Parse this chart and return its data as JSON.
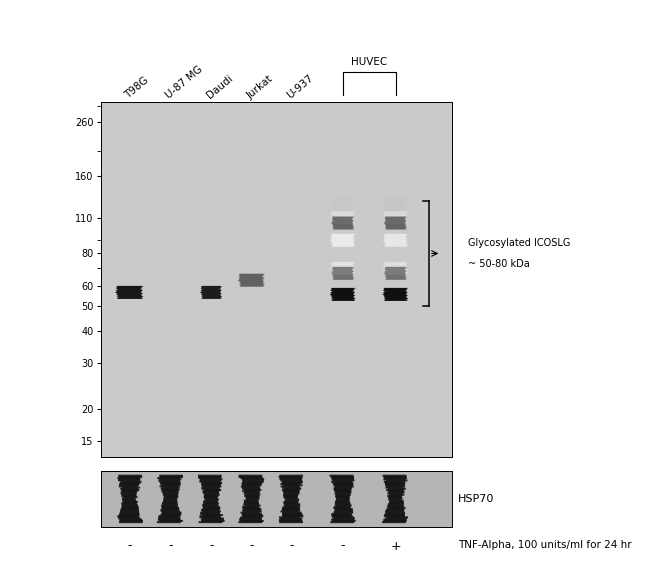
{
  "bg_color": "#c9c9c9",
  "panel_bg": "#cacaca",
  "lower_panel_bg": "#b5b5b5",
  "white_bg": "#ffffff",
  "lane_labels_main": [
    "T98G",
    "U-87 MG",
    "Daudi",
    "Jurkat",
    "U-937"
  ],
  "huvec_label": "HUVEC",
  "mw_markers": [
    260,
    160,
    110,
    80,
    60,
    50,
    40,
    30,
    20,
    15
  ],
  "annotation_line1": "Glycosylated ICOSLG",
  "annotation_line2": "~ 50-80 kDa",
  "hsp70_label": "HSP70",
  "tnf_label": "TNF-Alpha, 100 units/ml for 24 hr",
  "tnf_signs": [
    "-",
    "-",
    "-",
    "-",
    "-",
    "-",
    "+"
  ],
  "figure_width": 6.5,
  "figure_height": 5.82
}
